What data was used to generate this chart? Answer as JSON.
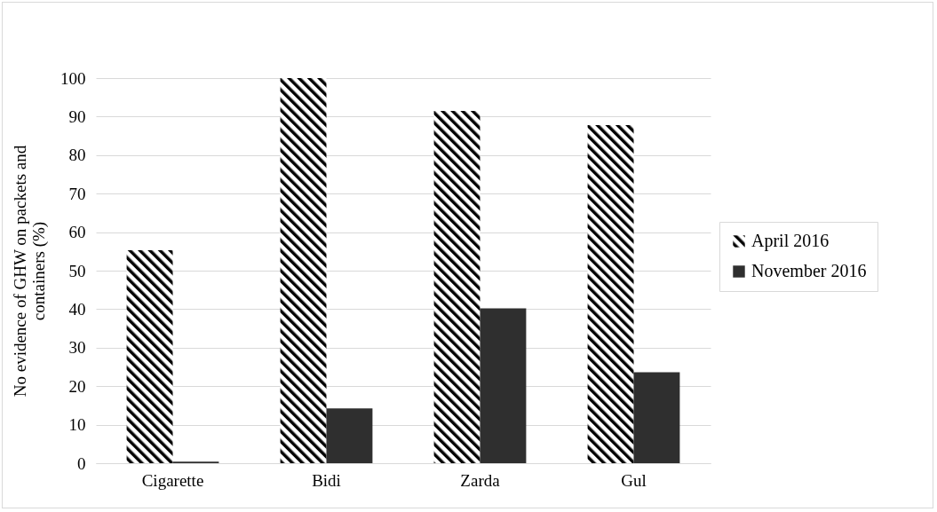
{
  "chart_data": {
    "type": "bar",
    "ylabel": "No evidence of GHW on packets and containers (%)",
    "categories": [
      "Cigarette",
      "Bidi",
      "Zarda",
      "Gul"
    ],
    "series": [
      {
        "name": "April 2016",
        "color": "#000000",
        "values": [
          55.3,
          100,
          91.5,
          87.8
        ]
      },
      {
        "name": "November 2016",
        "color": "#2f2f2f",
        "values": [
          0.4,
          14.2,
          40.2,
          23.6
        ]
      }
    ],
    "ylim": [
      0,
      100
    ],
    "yticks": [
      0,
      10,
      20,
      30,
      40,
      50,
      60,
      70,
      80,
      90,
      100
    ],
    "grid": "y",
    "legend": "right"
  }
}
